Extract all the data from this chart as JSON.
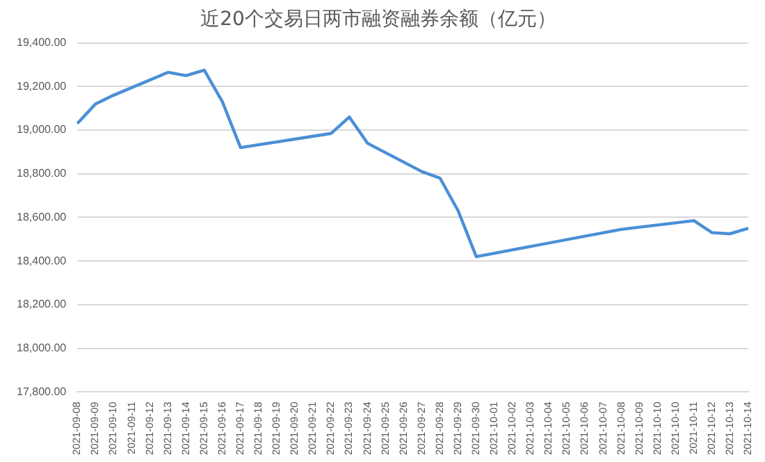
{
  "chart_data": {
    "type": "line",
    "title": "近20个交易日两市融资融券余额（亿元）",
    "categories": [
      "2021-09-08",
      "2021-09-09",
      "2021-09-10",
      "2021-09-11",
      "2021-09-12",
      "2021-09-13",
      "2021-09-14",
      "2021-09-15",
      "2021-09-16",
      "2021-09-17",
      "2021-09-18",
      "2021-09-19",
      "2021-09-20",
      "2021-09-21",
      "2021-09-22",
      "2021-09-23",
      "2021-09-24",
      "2021-09-25",
      "2021-09-26",
      "2021-09-27",
      "2021-09-28",
      "2021-09-29",
      "2021-09-30",
      "2021-10-01",
      "2021-10-02",
      "2021-10-03",
      "2021-10-04",
      "2021-10-05",
      "2021-10-06",
      "2021-10-07",
      "2021-10-08",
      "2021-10-09",
      "2021-10-10",
      "2021-10-10",
      "2021-10-11",
      "2021-10-12",
      "2021-10-13",
      "2021-10-14"
    ],
    "series": [
      {
        "color": "#4a8fd6",
        "values": [
          19030,
          19120,
          19160,
          null,
          null,
          19265,
          19250,
          19275,
          19130,
          18920,
          null,
          null,
          null,
          null,
          18985,
          19060,
          18940,
          null,
          null,
          18810,
          18780,
          18630,
          18420,
          null,
          null,
          null,
          null,
          null,
          null,
          null,
          18545,
          null,
          null,
          null,
          18585,
          18530,
          18525,
          18550
        ]
      }
    ],
    "ylim": [
      17800,
      19400
    ],
    "yticks": [
      {
        "value": 17800,
        "label": "17,800.00"
      },
      {
        "value": 18000,
        "label": "18,000.00"
      },
      {
        "value": 18200,
        "label": "18,200.00"
      },
      {
        "value": 18400,
        "label": "18,400.00"
      },
      {
        "value": 18600,
        "label": "18,600.00"
      },
      {
        "value": 18800,
        "label": "18,800.00"
      },
      {
        "value": 19000,
        "label": "19,000.00"
      },
      {
        "value": 19200,
        "label": "19,200.00"
      },
      {
        "value": 19400,
        "label": "19,400.00"
      }
    ],
    "grid": "y",
    "marker": "none",
    "line_style": "solid"
  }
}
